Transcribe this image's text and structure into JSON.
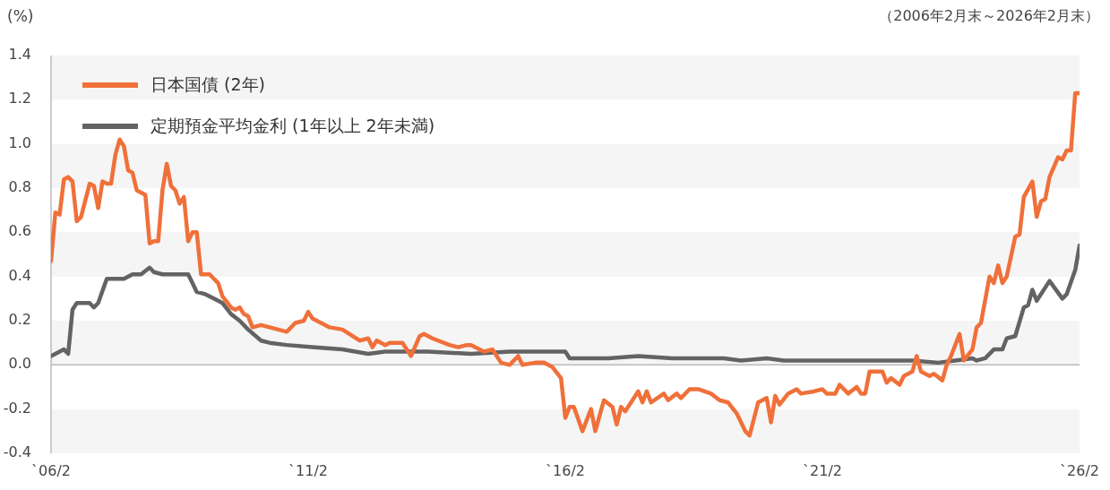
{
  "chart_data": {
    "type": "line",
    "ylabel": "(%)",
    "annotations": [
      "（2006年2月末～2026年2月末）"
    ],
    "xlim": [
      "2006-02",
      "2026-02"
    ],
    "xticks": [
      {
        "value": "2006-02",
        "label": "`06/2"
      },
      {
        "value": "2011-02",
        "label": "`11/2"
      },
      {
        "value": "2016-02",
        "label": "`16/2"
      },
      {
        "value": "2021-02",
        "label": "`21/2"
      },
      {
        "value": "2026-02",
        "label": "`26/2"
      }
    ],
    "ylim": [
      -0.4,
      1.4
    ],
    "yticks": [
      {
        "value": -0.4,
        "label": "-0.4"
      },
      {
        "value": -0.2,
        "label": "-0.2"
      },
      {
        "value": 0,
        "label": "0.0"
      },
      {
        "value": 0.2,
        "label": "0.2"
      },
      {
        "value": 0.4,
        "label": "0.4"
      },
      {
        "value": 0.6,
        "label": "0.6"
      },
      {
        "value": 0.8,
        "label": "0.8"
      },
      {
        "value": 1,
        "label": "1.0"
      },
      {
        "value": 1.2,
        "label": "1.2"
      },
      {
        "value": 1.4,
        "label": "1.4"
      }
    ],
    "grid": "y",
    "legend": "top left",
    "marker": "none",
    "line_style": "solid",
    "series": [
      {
        "name": "日本国債 (2年)",
        "color": "#f0703a",
        "x": [
          "2006-02",
          "2006-03",
          "2006-04",
          "2006-05",
          "2006-06",
          "2006-07",
          "2006-08",
          "2006-09",
          "2006-11",
          "2006-12",
          "2007-01",
          "2007-02",
          "2007-03",
          "2007-04",
          "2007-05",
          "2007-06",
          "2007-07",
          "2007-08",
          "2007-09",
          "2007-10",
          "2007-12",
          "2008-01",
          "2008-02",
          "2008-03",
          "2008-04",
          "2008-05",
          "2008-06",
          "2008-07",
          "2008-08",
          "2008-09",
          "2008-10",
          "2008-11",
          "2008-12",
          "2009-01",
          "2009-02",
          "2009-03",
          "2009-05",
          "2009-06",
          "2009-08",
          "2009-09",
          "2009-10",
          "2009-11",
          "2009-12",
          "2010-01",
          "2010-03",
          "2010-05",
          "2010-07",
          "2010-09",
          "2010-11",
          "2011-01",
          "2011-02",
          "2011-03",
          "2011-05",
          "2011-07",
          "2011-10",
          "2012-02",
          "2012-04",
          "2012-05",
          "2012-06",
          "2012-08",
          "2012-09",
          "2012-12",
          "2013-02",
          "2013-04",
          "2013-05",
          "2013-07",
          "2013-11",
          "2014-01",
          "2014-03",
          "2014-04",
          "2014-07",
          "2014-09",
          "2014-11",
          "2015-01",
          "2015-03",
          "2015-04",
          "2015-07",
          "2015-09",
          "2015-11",
          "2016-01",
          "2016-02",
          "2016-03",
          "2016-04",
          "2016-06",
          "2016-08",
          "2016-09",
          "2016-11",
          "2017-01",
          "2017-02",
          "2017-03",
          "2017-04",
          "2017-07",
          "2017-08",
          "2017-09",
          "2017-10",
          "2018-01",
          "2018-02",
          "2018-04",
          "2018-05",
          "2018-07",
          "2018-09",
          "2018-12",
          "2019-02",
          "2019-04",
          "2019-06",
          "2019-08",
          "2019-09",
          "2019-11",
          "2020-01",
          "2020-02",
          "2020-03",
          "2020-04",
          "2020-06",
          "2020-08",
          "2020-09",
          "2020-12",
          "2021-02",
          "2021-03",
          "2021-05",
          "2021-06",
          "2021-08",
          "2021-10",
          "2021-11",
          "2021-12",
          "2022-01",
          "2022-04",
          "2022-05",
          "2022-06",
          "2022-08",
          "2022-09",
          "2022-11",
          "2022-12",
          "2023-01",
          "2023-03",
          "2023-04",
          "2023-06",
          "2023-07",
          "2023-08",
          "2023-10",
          "2023-11",
          "2024-01",
          "2024-02",
          "2024-03",
          "2024-05",
          "2024-06",
          "2024-07",
          "2024-08",
          "2024-09",
          "2024-11",
          "2024-12",
          "2025-01",
          "2025-03",
          "2025-04",
          "2025-05",
          "2025-06",
          "2025-07",
          "2025-09",
          "2025-10",
          "2025-11",
          "2025-12",
          "2026-01",
          "2026-02"
        ],
        "values": [
          0.47,
          0.69,
          0.68,
          0.84,
          0.85,
          0.83,
          0.65,
          0.67,
          0.82,
          0.81,
          0.71,
          0.83,
          0.82,
          0.82,
          0.95,
          1.02,
          0.99,
          0.88,
          0.87,
          0.79,
          0.77,
          0.55,
          0.56,
          0.56,
          0.79,
          0.91,
          0.81,
          0.79,
          0.73,
          0.76,
          0.56,
          0.6,
          0.6,
          0.41,
          0.41,
          0.41,
          0.37,
          0.31,
          0.26,
          0.25,
          0.26,
          0.23,
          0.22,
          0.17,
          0.18,
          0.17,
          0.16,
          0.15,
          0.19,
          0.2,
          0.24,
          0.21,
          0.19,
          0.17,
          0.16,
          0.11,
          0.12,
          0.08,
          0.11,
          0.09,
          0.1,
          0.1,
          0.04,
          0.13,
          0.14,
          0.12,
          0.09,
          0.08,
          0.09,
          0.09,
          0.06,
          0.07,
          0.01,
          0,
          0.04,
          0,
          0.01,
          0.01,
          -0.01,
          -0.06,
          -0.24,
          -0.19,
          -0.19,
          -0.3,
          -0.2,
          -0.3,
          -0.16,
          -0.19,
          -0.27,
          -0.19,
          -0.21,
          -0.12,
          -0.17,
          -0.12,
          -0.17,
          -0.13,
          -0.16,
          -0.13,
          -0.15,
          -0.11,
          -0.11,
          -0.13,
          -0.16,
          -0.17,
          -0.22,
          -0.3,
          -0.32,
          -0.17,
          -0.15,
          -0.26,
          -0.14,
          -0.18,
          -0.13,
          -0.11,
          -0.13,
          -0.12,
          -0.11,
          -0.13,
          -0.13,
          -0.09,
          -0.13,
          -0.1,
          -0.13,
          -0.13,
          -0.03,
          -0.03,
          -0.08,
          -0.06,
          -0.09,
          -0.05,
          -0.03,
          0.04,
          -0.03,
          -0.05,
          -0.04,
          -0.07,
          0,
          0.04,
          0.14,
          0.02,
          0.07,
          0.17,
          0.19,
          0.4,
          0.37,
          0.45,
          0.37,
          0.4,
          0.58,
          0.59,
          0.76,
          0.83,
          0.67,
          0.74,
          0.75,
          0.85,
          0.94,
          0.93,
          0.97,
          0.97,
          1.23,
          1.23
        ]
      },
      {
        "name": "定期預金平均金利 (1年以上 2年未満)",
        "color": "#636363",
        "x": [
          "2006-02",
          "2006-03",
          "2006-05",
          "2006-06",
          "2006-07",
          "2006-08",
          "2006-09",
          "2006-11",
          "2006-12",
          "2007-01",
          "2007-03",
          "2007-05",
          "2007-07",
          "2007-09",
          "2007-11",
          "2008-01",
          "2008-02",
          "2008-04",
          "2008-06",
          "2008-10",
          "2008-11",
          "2008-12",
          "2009-02",
          "2009-04",
          "2009-06",
          "2009-08",
          "2009-10",
          "2009-12",
          "2010-03",
          "2010-05",
          "2010-09",
          "2011-03",
          "2011-10",
          "2012-04",
          "2012-08",
          "2013-06",
          "2014-04",
          "2015-01",
          "2015-10",
          "2016-02",
          "2016-03",
          "2016-12",
          "2017-07",
          "2018-03",
          "2019-03",
          "2019-07",
          "2020-01",
          "2020-05",
          "2021-05",
          "2022-01",
          "2022-11",
          "2023-05",
          "2023-09",
          "2024-01",
          "2024-02",
          "2024-04",
          "2024-06",
          "2024-08",
          "2024-09",
          "2024-11",
          "2025-01",
          "2025-02",
          "2025-03",
          "2025-04",
          "2025-07",
          "2025-10",
          "2025-11",
          "2026-01",
          "2026-02"
        ],
        "values": [
          0.04,
          0.05,
          0.07,
          0.05,
          0.25,
          0.28,
          0.28,
          0.28,
          0.26,
          0.28,
          0.39,
          0.39,
          0.39,
          0.41,
          0.41,
          0.44,
          0.42,
          0.41,
          0.41,
          0.41,
          0.37,
          0.33,
          0.32,
          0.3,
          0.28,
          0.23,
          0.2,
          0.16,
          0.11,
          0.1,
          0.09,
          0.08,
          0.07,
          0.05,
          0.06,
          0.06,
          0.05,
          0.06,
          0.06,
          0.06,
          0.03,
          0.03,
          0.04,
          0.03,
          0.03,
          0.02,
          0.03,
          0.02,
          0.02,
          0.02,
          0.02,
          0.01,
          0.02,
          0.03,
          0.02,
          0.03,
          0.07,
          0.07,
          0.12,
          0.13,
          0.26,
          0.27,
          0.34,
          0.29,
          0.38,
          0.3,
          0.32,
          0.43,
          0.54
        ]
      }
    ]
  }
}
